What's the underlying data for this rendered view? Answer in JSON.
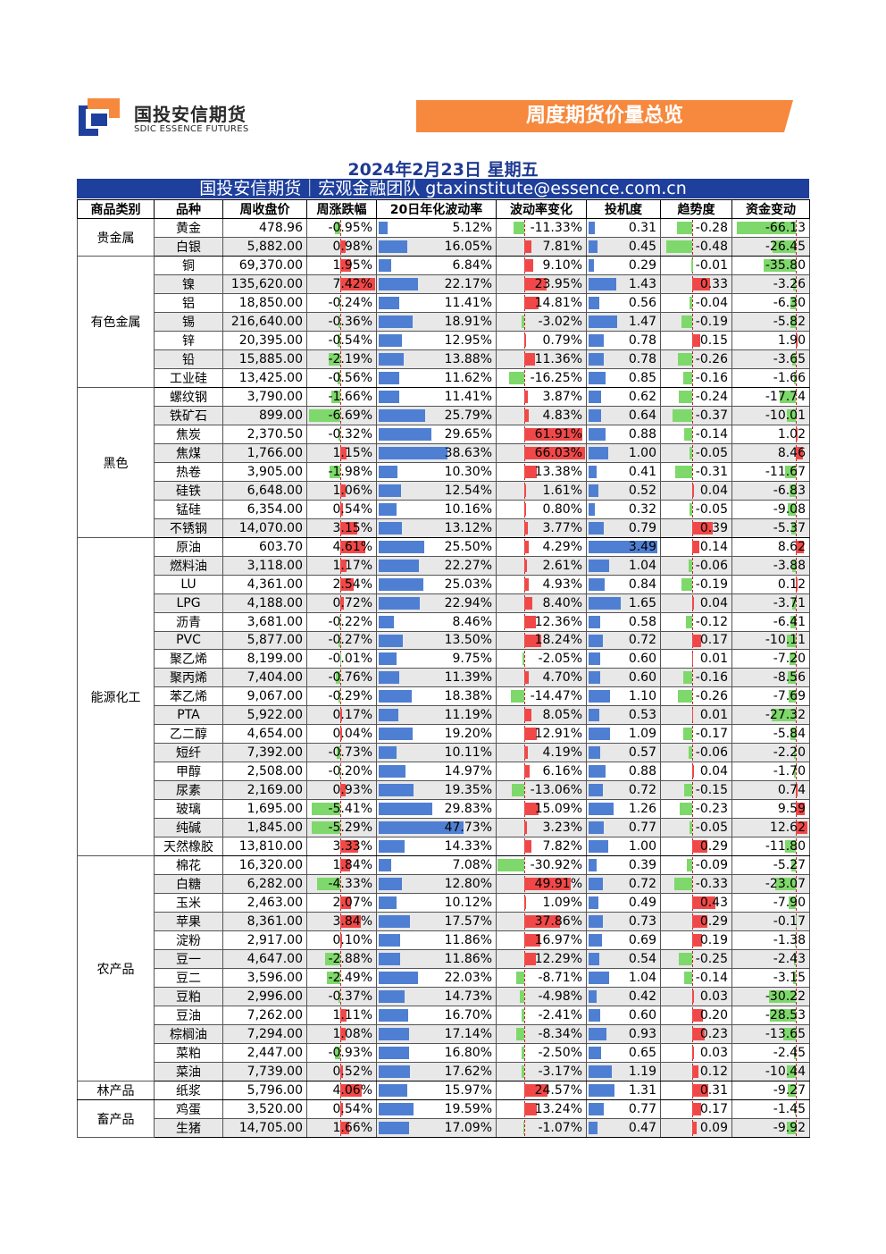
{
  "logo": {
    "cn": "国投安信期货",
    "en": "SDIC ESSENCE FUTURES"
  },
  "banner": {
    "title": "周度期货价量总览"
  },
  "date_line": "2024年2月23日 星期五",
  "team_line": "国投安信期货｜宏观金融团队  gtaxinstitute@essence.com.cn",
  "colors": {
    "header_blue": "#1e3f9c",
    "banner_orange": "#f6893e",
    "bar_blue": "#4f7fd3",
    "bar_red": "#f04848",
    "bar_green": "#7fd86b"
  },
  "headers": [
    "商品类别",
    "品种",
    "周收盘价",
    "周涨跌幅",
    "20日年化波动率",
    "波动率变化",
    "投机度",
    "趋势度",
    "资金变动"
  ],
  "groups": [
    {
      "category": "贵金属",
      "rows": [
        [
          "黄金",
          "478.96",
          "-0.95%",
          "5.12%",
          "-11.33%",
          "0.31",
          "-0.28",
          "-66.13"
        ],
        [
          "白银",
          "5,882.00",
          "0.98%",
          "16.05%",
          "7.81%",
          "0.45",
          "-0.48",
          "-26.45"
        ]
      ]
    },
    {
      "category": "有色金属",
      "rows": [
        [
          "铜",
          "69,370.00",
          "1.95%",
          "6.84%",
          "9.10%",
          "0.29",
          "-0.01",
          "-35.80"
        ],
        [
          "镍",
          "135,620.00",
          "7.42%",
          "22.17%",
          "23.95%",
          "1.43",
          "0.33",
          "-3.26"
        ],
        [
          "铝",
          "18,850.00",
          "-0.24%",
          "11.41%",
          "14.81%",
          "0.56",
          "-0.04",
          "-6.30"
        ],
        [
          "锡",
          "216,640.00",
          "-0.36%",
          "18.91%",
          "-3.02%",
          "1.47",
          "-0.19",
          "-5.82"
        ],
        [
          "锌",
          "20,395.00",
          "-0.54%",
          "12.95%",
          "0.79%",
          "0.78",
          "0.15",
          "1.90"
        ],
        [
          "铅",
          "15,885.00",
          "-2.19%",
          "13.88%",
          "11.36%",
          "0.78",
          "-0.26",
          "-3.65"
        ],
        [
          "工业硅",
          "13,425.00",
          "-0.56%",
          "11.62%",
          "-16.25%",
          "0.85",
          "-0.16",
          "-1.66"
        ]
      ]
    },
    {
      "category": "黑色",
      "rows": [
        [
          "螺纹钢",
          "3,790.00",
          "-1.66%",
          "11.41%",
          "3.87%",
          "0.62",
          "-0.24",
          "-17.74"
        ],
        [
          "铁矿石",
          "899.00",
          "-6.69%",
          "25.79%",
          "4.83%",
          "0.64",
          "-0.37",
          "-10.01"
        ],
        [
          "焦炭",
          "2,370.50",
          "-0.32%",
          "29.65%",
          "61.91%",
          "0.88",
          "-0.14",
          "1.02"
        ],
        [
          "焦煤",
          "1,766.00",
          "1.15%",
          "38.63%",
          "66.03%",
          "1.00",
          "-0.05",
          "8.46"
        ],
        [
          "热卷",
          "3,905.00",
          "-1.98%",
          "10.30%",
          "13.38%",
          "0.41",
          "-0.31",
          "-11.67"
        ],
        [
          "硅铁",
          "6,648.00",
          "1.06%",
          "12.54%",
          "1.61%",
          "0.52",
          "0.04",
          "-6.83"
        ],
        [
          "锰硅",
          "6,354.00",
          "0.54%",
          "10.16%",
          "0.80%",
          "0.32",
          "-0.05",
          "-9.08"
        ],
        [
          "不锈钢",
          "14,070.00",
          "3.15%",
          "13.12%",
          "3.77%",
          "0.79",
          "0.39",
          "-5.37"
        ]
      ]
    },
    {
      "category": "能源化工",
      "rows": [
        [
          "原油",
          "603.70",
          "4.61%",
          "25.50%",
          "4.29%",
          "3.49",
          "0.14",
          "8.62"
        ],
        [
          "燃料油",
          "3,118.00",
          "1.17%",
          "22.27%",
          "2.61%",
          "1.04",
          "-0.06",
          "-3.88"
        ],
        [
          "LU",
          "4,361.00",
          "2.54%",
          "25.03%",
          "4.93%",
          "0.84",
          "-0.19",
          "0.12"
        ],
        [
          "LPG",
          "4,188.00",
          "0.72%",
          "22.94%",
          "8.40%",
          "1.65",
          "0.04",
          "-3.71"
        ],
        [
          "沥青",
          "3,681.00",
          "-0.22%",
          "8.46%",
          "12.36%",
          "0.58",
          "-0.12",
          "-6.41"
        ],
        [
          "PVC",
          "5,877.00",
          "-0.27%",
          "13.50%",
          "18.24%",
          "0.72",
          "0.17",
          "-10.11"
        ],
        [
          "聚乙烯",
          "8,199.00",
          "-0.01%",
          "9.75%",
          "-2.05%",
          "0.60",
          "0.01",
          "-7.20"
        ],
        [
          "聚丙烯",
          "7,404.00",
          "-0.76%",
          "11.39%",
          "4.70%",
          "0.60",
          "-0.16",
          "-8.56"
        ],
        [
          "苯乙烯",
          "9,067.00",
          "-0.29%",
          "18.38%",
          "-14.47%",
          "1.10",
          "-0.26",
          "-7.69"
        ],
        [
          "PTA",
          "5,922.00",
          "0.17%",
          "11.19%",
          "8.05%",
          "0.53",
          "0.01",
          "-27.32"
        ],
        [
          "乙二醇",
          "4,654.00",
          "0.04%",
          "19.20%",
          "12.91%",
          "1.09",
          "-0.17",
          "-5.84"
        ],
        [
          "短纤",
          "7,392.00",
          "-0.73%",
          "10.11%",
          "4.19%",
          "0.57",
          "-0.06",
          "-2.20"
        ],
        [
          "甲醇",
          "2,508.00",
          "-0.20%",
          "14.97%",
          "6.16%",
          "0.88",
          "0.04",
          "-1.70"
        ],
        [
          "尿素",
          "2,169.00",
          "0.93%",
          "19.35%",
          "-13.06%",
          "0.72",
          "-0.15",
          "0.74"
        ],
        [
          "玻璃",
          "1,695.00",
          "-5.41%",
          "29.83%",
          "15.09%",
          "1.26",
          "-0.23",
          "9.59"
        ],
        [
          "纯碱",
          "1,845.00",
          "-5.29%",
          "47.73%",
          "3.23%",
          "0.77",
          "-0.05",
          "12.62"
        ],
        [
          "天然橡胶",
          "13,810.00",
          "3.33%",
          "14.33%",
          "7.82%",
          "1.00",
          "0.29",
          "-11.80"
        ]
      ]
    },
    {
      "category": "农产品",
      "rows": [
        [
          "棉花",
          "16,320.00",
          "1.84%",
          "7.08%",
          "-30.92%",
          "0.39",
          "-0.09",
          "-5.27"
        ],
        [
          "白糖",
          "6,282.00",
          "-4.33%",
          "12.80%",
          "49.91%",
          "0.72",
          "-0.33",
          "-23.07"
        ],
        [
          "玉米",
          "2,463.00",
          "2.07%",
          "10.12%",
          "1.09%",
          "0.49",
          "0.43",
          "-7.90"
        ],
        [
          "苹果",
          "8,361.00",
          "3.84%",
          "17.57%",
          "37.86%",
          "0.73",
          "0.29",
          "-0.17"
        ],
        [
          "淀粉",
          "2,917.00",
          "0.10%",
          "11.86%",
          "16.97%",
          "0.69",
          "0.19",
          "-1.38"
        ],
        [
          "豆一",
          "4,647.00",
          "-2.88%",
          "11.86%",
          "12.29%",
          "0.54",
          "-0.25",
          "-2.43"
        ],
        [
          "豆二",
          "3,596.00",
          "-2.49%",
          "22.03%",
          "-8.71%",
          "1.04",
          "-0.14",
          "-3.15"
        ],
        [
          "豆粕",
          "2,996.00",
          "-0.37%",
          "14.73%",
          "-4.98%",
          "0.42",
          "0.03",
          "-30.22"
        ],
        [
          "豆油",
          "7,262.00",
          "1.11%",
          "16.70%",
          "-2.41%",
          "0.60",
          "0.20",
          "-28.53"
        ],
        [
          "棕榈油",
          "7,294.00",
          "1.08%",
          "17.14%",
          "-8.34%",
          "0.93",
          "0.23",
          "-13.65"
        ],
        [
          "菜粕",
          "2,447.00",
          "-0.93%",
          "16.80%",
          "-2.50%",
          "0.65",
          "0.03",
          "-2.45"
        ],
        [
          "菜油",
          "7,739.00",
          "0.52%",
          "17.62%",
          "-3.17%",
          "1.19",
          "0.12",
          "-10.44"
        ]
      ]
    },
    {
      "category": "林产品",
      "rows": [
        [
          "纸浆",
          "5,796.00",
          "4.06%",
          "15.97%",
          "24.57%",
          "1.31",
          "0.31",
          "-9.27"
        ]
      ]
    },
    {
      "category": "畜产品",
      "rows": [
        [
          "鸡蛋",
          "3,520.00",
          "0.54%",
          "19.59%",
          "13.24%",
          "0.77",
          "0.17",
          "-1.45"
        ],
        [
          "生猪",
          "14,705.00",
          "1.66%",
          "17.09%",
          "-1.07%",
          "0.47",
          "0.09",
          "-9.92"
        ]
      ]
    }
  ]
}
